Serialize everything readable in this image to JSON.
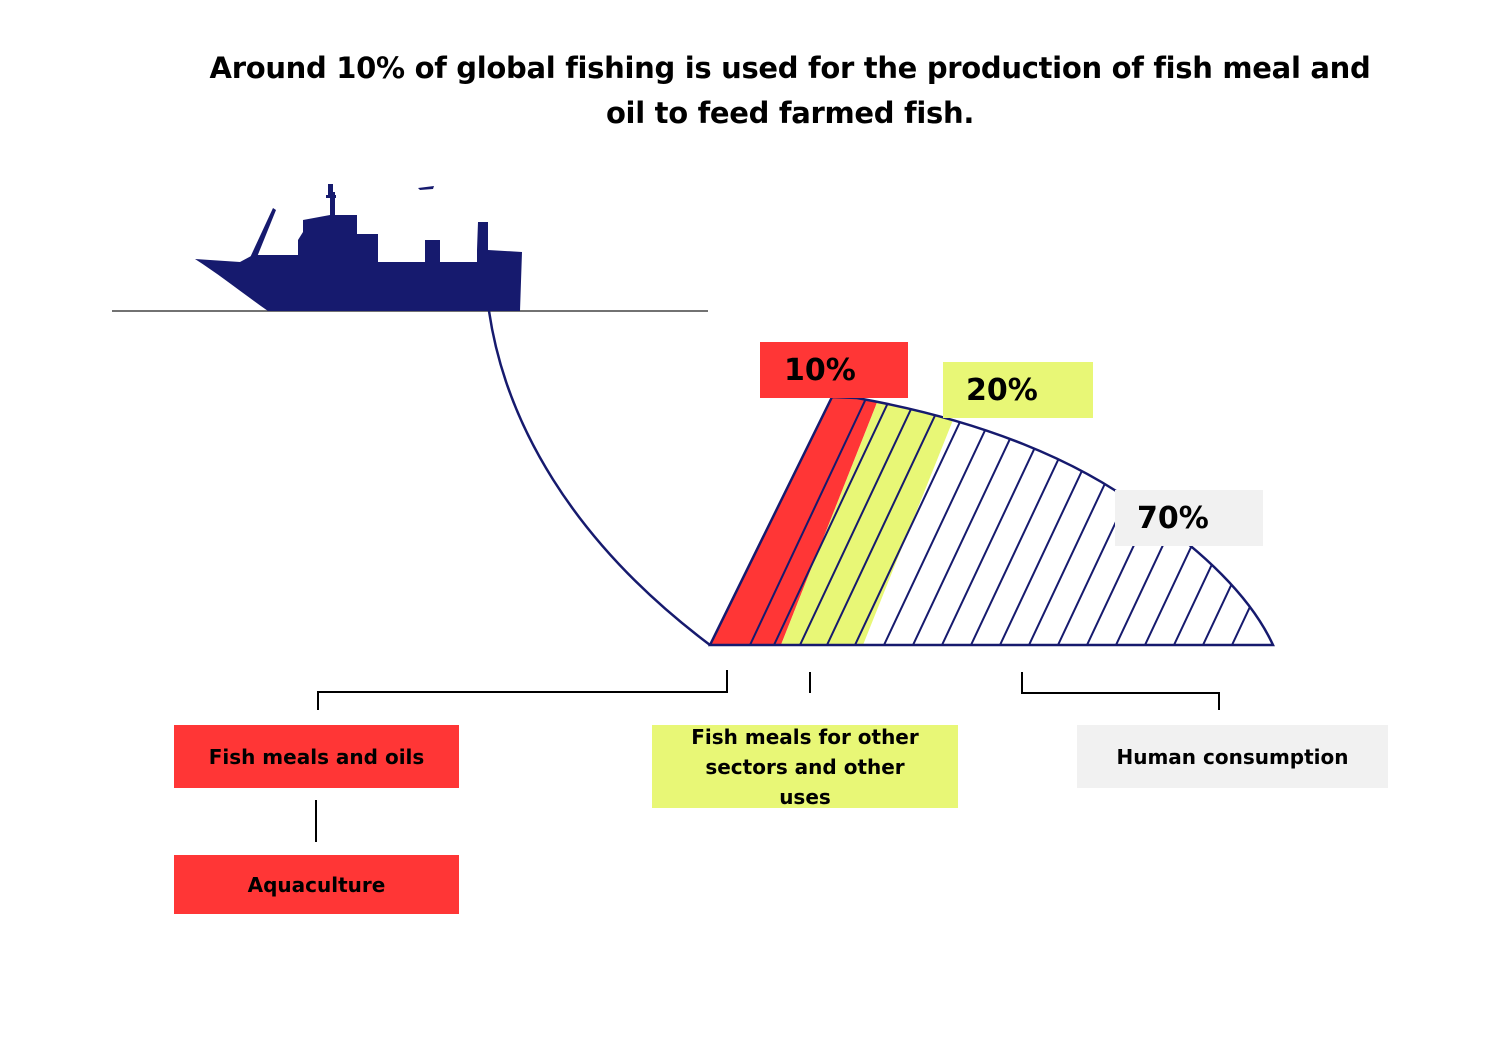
{
  "title": "Around 10% of global fishing is used for the production of fish meal and oil to feed farmed fish.",
  "colors": {
    "ship": "#161a6e",
    "red": "#ff3636",
    "yellow": "#e8f776",
    "grey": "#f1f1f1",
    "line": "#161a6e"
  },
  "icons": {
    "ship": "fishing-vessel-icon"
  },
  "catch_shares": [
    {
      "percent_label": "10%",
      "value": 10,
      "category": "Fish meals and oils"
    },
    {
      "percent_label": "20%",
      "value": 20,
      "category": "Fish meals for other sectors and other uses"
    },
    {
      "percent_label": "70%",
      "value": 70,
      "category": "Human consumption"
    }
  ],
  "labels": {
    "fish_meals_oils": "Fish meals and oils",
    "aquaculture": "Aquaculture",
    "other_uses": "Fish meals for other sectors and other uses",
    "human_consumption": "Human consumption"
  }
}
